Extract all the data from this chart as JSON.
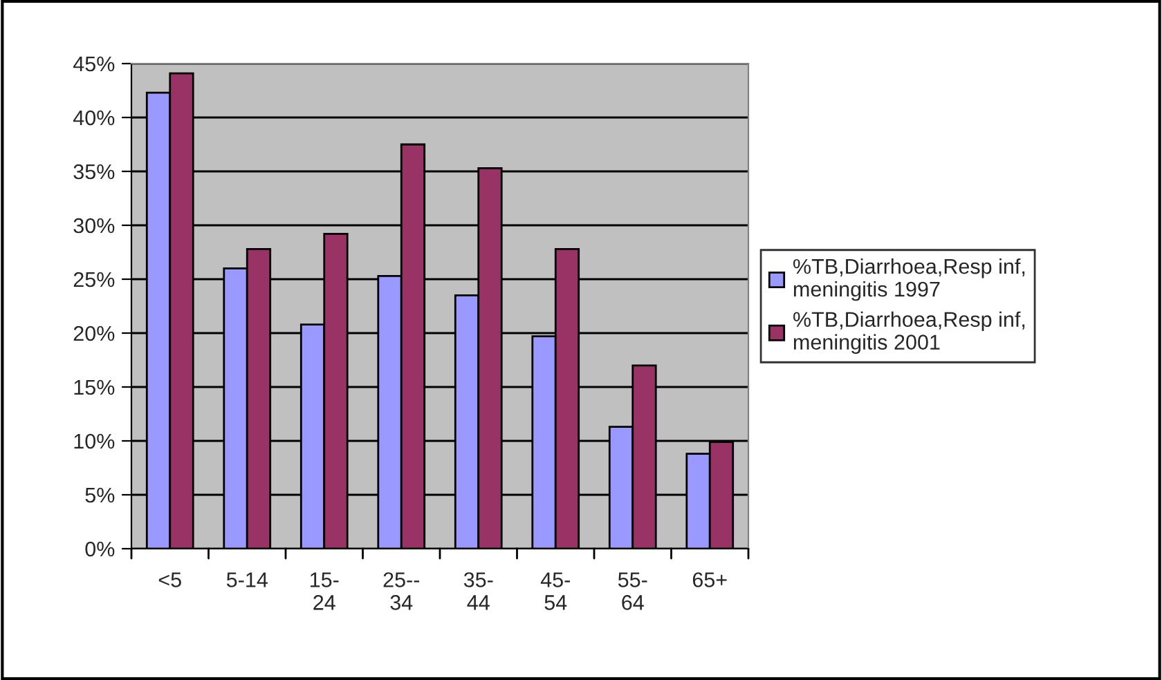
{
  "chart_data": {
    "type": "bar",
    "categories": [
      "<5",
      "5-14",
      "15-\n24",
      "25--\n34",
      "35-\n44",
      "45-\n54",
      "55-\n64",
      "65+"
    ],
    "series": [
      {
        "name": "%TB,Diarrhoea,Resp inf,\nmeningitis 1997",
        "color": "#9999ff",
        "values": [
          42.3,
          26.0,
          20.8,
          25.3,
          23.5,
          19.7,
          11.3,
          8.8
        ]
      },
      {
        "name": "%TB,Diarrhoea,Resp inf,\nmeningitis 2001",
        "color": "#993366",
        "values": [
          44.1,
          27.8,
          29.2,
          37.5,
          35.3,
          27.8,
          17.0,
          9.9
        ]
      }
    ],
    "ylim": [
      0,
      45
    ],
    "yticks": [
      {
        "value": 0,
        "label": "0%"
      },
      {
        "value": 5,
        "label": "5%"
      },
      {
        "value": 10,
        "label": "10%"
      },
      {
        "value": 15,
        "label": "15%"
      },
      {
        "value": 20,
        "label": "20%"
      },
      {
        "value": 25,
        "label": "25%"
      },
      {
        "value": 30,
        "label": "30%"
      },
      {
        "value": 35,
        "label": "35%"
      },
      {
        "value": 40,
        "label": "40%"
      },
      {
        "value": 45,
        "label": "45%"
      }
    ],
    "grid": "y",
    "legend": "right"
  }
}
